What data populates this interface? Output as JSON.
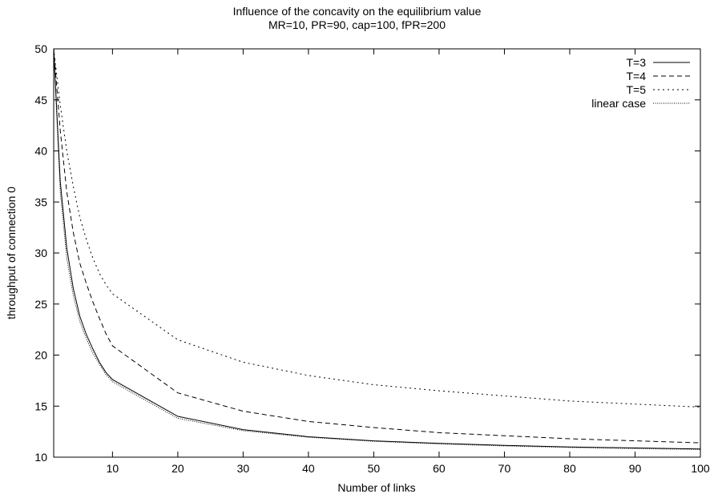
{
  "chart_data": {
    "type": "line",
    "title": "Influence of the concavity on the equilibrium value",
    "subtitle": "MR=10, PR=90, cap=100, fPR=200",
    "xlabel": "Number of links",
    "ylabel": "throughput of connection 0",
    "xlim": [
      1,
      100
    ],
    "ylim": [
      10,
      50
    ],
    "xticks": [
      10,
      20,
      30,
      40,
      50,
      60,
      70,
      80,
      90,
      100
    ],
    "yticks": [
      10,
      15,
      20,
      25,
      30,
      35,
      40,
      45,
      50
    ],
    "grid": false,
    "legend": "top-right",
    "x": [
      1,
      2,
      3,
      4,
      5,
      6,
      7,
      8,
      9,
      10,
      20,
      30,
      40,
      50,
      60,
      70,
      80,
      90,
      100
    ],
    "series": [
      {
        "name": "T=3",
        "dash": "solid",
        "values": [
          50,
          37,
          30.5,
          26.5,
          23.8,
          22,
          20.6,
          19.3,
          18.3,
          17.6,
          14.0,
          12.7,
          12.0,
          11.6,
          11.35,
          11.15,
          11.0,
          10.9,
          10.8
        ]
      },
      {
        "name": "T=4",
        "dash": "dashed",
        "values": [
          50,
          42,
          36,
          32,
          29,
          27,
          25.2,
          23.6,
          22.1,
          20.9,
          16.3,
          14.5,
          13.5,
          12.9,
          12.4,
          12.1,
          11.8,
          11.6,
          11.4
        ]
      },
      {
        "name": "T=5",
        "dash": "dotted",
        "values": [
          50,
          44.5,
          40,
          36.5,
          33.5,
          31.3,
          29.5,
          28,
          26.9,
          26.0,
          21.5,
          19.3,
          18.0,
          17.1,
          16.5,
          16.0,
          15.5,
          15.2,
          14.9
        ]
      },
      {
        "name": "linear case",
        "dash": "fine-dotted",
        "values": [
          50,
          36,
          29.5,
          25.8,
          23.3,
          21.6,
          20.2,
          19.1,
          18.1,
          17.4,
          13.8,
          12.6,
          11.95,
          11.55,
          11.3,
          11.1,
          10.95,
          10.85,
          10.75
        ]
      }
    ]
  }
}
